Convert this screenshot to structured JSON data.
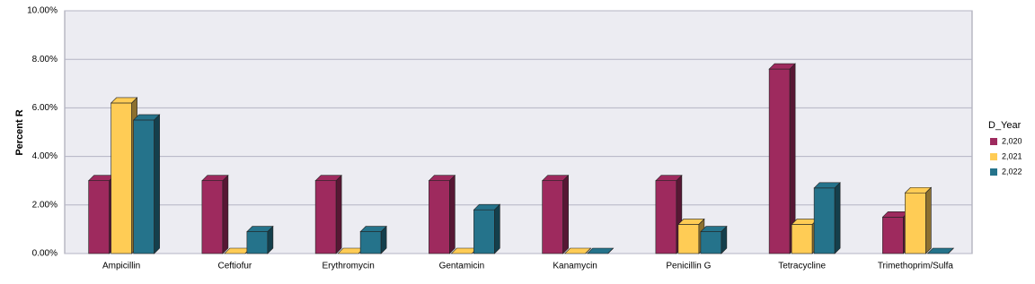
{
  "chart_data": {
    "type": "bar3d",
    "y_label": "Percent R",
    "categories": [
      "Ampicillin",
      "Ceftiofur",
      "Erythromycin",
      "Gentamicin",
      "Kanamycin",
      "Penicillin G",
      "Tetracycline",
      "Trimethoprim/Sulfa"
    ],
    "series": [
      {
        "name": "2,020",
        "color": "#9e2a5e",
        "values": [
          3.0,
          3.0,
          3.0,
          3.0,
          3.0,
          3.0,
          7.6,
          1.5
        ]
      },
      {
        "name": "2,021",
        "color": "#ffcc55",
        "values": [
          6.2,
          0,
          0,
          0,
          0,
          1.2,
          1.2,
          2.5
        ]
      },
      {
        "name": "2,022",
        "color": "#25738b",
        "values": [
          5.5,
          0.9,
          0.9,
          1.8,
          0,
          0.9,
          2.7,
          0
        ]
      }
    ],
    "legend_title": "D_Year",
    "legend": "right",
    "ylim": [
      0,
      10
    ],
    "yticks": [
      {
        "value": 0,
        "label": "0.00%"
      },
      {
        "value": 2,
        "label": "2.00%"
      },
      {
        "value": 4,
        "label": "4.00%"
      },
      {
        "value": 6,
        "label": "6.00%"
      },
      {
        "value": 8,
        "label": "8.00%"
      },
      {
        "value": 10,
        "label": "10.00%"
      }
    ],
    "grid": true
  }
}
